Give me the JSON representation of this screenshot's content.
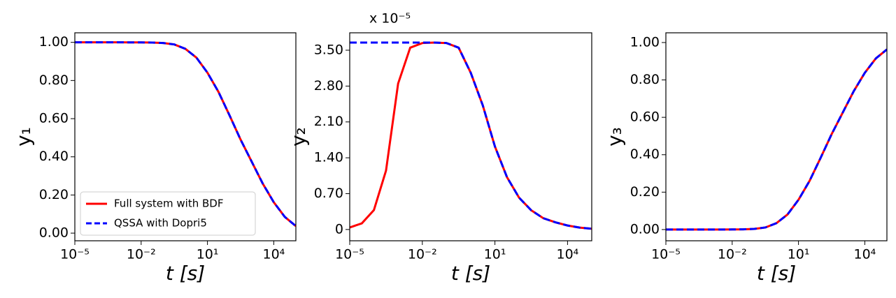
{
  "chart_data": [
    {
      "type": "line",
      "x_label": "t [s]",
      "y_label": "y₁",
      "log_x": true,
      "legend": "lower left",
      "xlim": [
        1e-05,
        100000.0
      ],
      "ylim": [
        -0.04,
        1.05
      ],
      "xticks": [
        {
          "value": 1e-05,
          "label": "10⁻⁵"
        },
        {
          "value": 0.01,
          "label": "10⁻²"
        },
        {
          "value": 10,
          "label": "10¹"
        },
        {
          "value": 10000,
          "label": "10⁴"
        }
      ],
      "yticks": [
        {
          "value": 0,
          "label": "0.00"
        },
        {
          "value": 0.2,
          "label": "0.20"
        },
        {
          "value": 0.4,
          "label": "0.40"
        },
        {
          "value": 0.6,
          "label": "0.60"
        },
        {
          "value": 0.8,
          "label": "0.80"
        },
        {
          "value": 1,
          "label": "1.00"
        }
      ],
      "x": [
        1e-05,
        3.16e-05,
        0.0001,
        0.000316,
        0.001,
        0.00316,
        0.01,
        0.0316,
        0.1,
        0.316,
        1,
        3.16,
        10,
        31.6,
        100,
        316,
        1000,
        3162,
        10000,
        31623,
        100000
      ],
      "series": [
        {
          "name": "Full system with BDF",
          "color": "#ff0000",
          "dashed": false,
          "values": [
            1,
            1,
            1,
            1,
            1,
            0.9999,
            0.9996,
            0.9988,
            0.9965,
            0.989,
            0.966,
            0.92,
            0.841,
            0.74,
            0.617,
            0.49,
            0.375,
            0.26,
            0.162,
            0.085,
            0.037
          ]
        },
        {
          "name": "QSSA with Dopri5",
          "color": "#0000ff",
          "dashed": true,
          "values": [
            1,
            1,
            1,
            1,
            1,
            0.9999,
            0.9996,
            0.9988,
            0.9965,
            0.989,
            0.966,
            0.92,
            0.841,
            0.74,
            0.617,
            0.49,
            0.375,
            0.26,
            0.162,
            0.085,
            0.037
          ]
        }
      ]
    },
    {
      "type": "line",
      "x_label": "t [s]",
      "y_label": "y₂",
      "log_x": true,
      "y_offset_label": "x 10⁻⁵",
      "xlim": [
        1e-05,
        100000.0
      ],
      "ylim": [
        -0.22,
        3.84
      ],
      "xticks": [
        {
          "value": 1e-05,
          "label": "10⁻⁵"
        },
        {
          "value": 0.01,
          "label": "10⁻²"
        },
        {
          "value": 10,
          "label": "10¹"
        },
        {
          "value": 10000,
          "label": "10⁴"
        }
      ],
      "yticks": [
        0,
        {
          "value": 0.7,
          "label": "0.70"
        },
        {
          "value": 1.4,
          "label": "1.40"
        },
        {
          "value": 2.1,
          "label": "2.10"
        },
        {
          "value": 2.8,
          "label": "2.80"
        },
        {
          "value": 3.5,
          "label": "3.50"
        }
      ],
      "x": [
        1e-05,
        3.16e-05,
        0.0001,
        0.000316,
        0.001,
        0.00316,
        0.01,
        0.0316,
        0.1,
        0.316,
        1,
        3.16,
        10,
        31.6,
        100,
        316,
        1000,
        3162,
        10000,
        31623,
        100000
      ],
      "series": [
        {
          "color": "#ff0000",
          "dashed": false,
          "values": [
            0.04,
            0.12,
            0.38,
            1.15,
            2.85,
            3.55,
            3.64,
            3.65,
            3.64,
            3.55,
            3.06,
            2.42,
            1.62,
            1.02,
            0.62,
            0.375,
            0.22,
            0.14,
            0.078,
            0.037,
            0.015
          ]
        },
        {
          "color": "#0000ff",
          "dashed": true,
          "values": [
            3.65,
            3.65,
            3.65,
            3.65,
            3.65,
            3.65,
            3.65,
            3.65,
            3.64,
            3.55,
            3.06,
            2.42,
            1.62,
            1.02,
            0.62,
            0.375,
            0.22,
            0.14,
            0.078,
            0.037,
            0.015
          ]
        }
      ]
    },
    {
      "type": "line",
      "x_label": "t [s]",
      "y_label": "y₃",
      "log_x": true,
      "xlim": [
        1e-05,
        100000.0
      ],
      "ylim": [
        -0.06,
        1.052
      ],
      "xticks": [
        {
          "value": 1e-05,
          "label": "10⁻⁵"
        },
        {
          "value": 0.01,
          "label": "10⁻²"
        },
        {
          "value": 10,
          "label": "10¹"
        },
        {
          "value": 10000,
          "label": "10⁴"
        }
      ],
      "yticks": [
        {
          "value": 0,
          "label": "0.00"
        },
        {
          "value": 0.2,
          "label": "0.20"
        },
        {
          "value": 0.4,
          "label": "0.40"
        },
        {
          "value": 0.6,
          "label": "0.60"
        },
        {
          "value": 0.8,
          "label": "0.80"
        },
        {
          "value": 1,
          "label": "1.00"
        }
      ],
      "x": [
        1e-05,
        3.16e-05,
        0.0001,
        0.000316,
        0.001,
        0.00316,
        0.01,
        0.0316,
        0.1,
        0.316,
        1,
        3.16,
        10,
        31.6,
        100,
        316,
        1000,
        3162,
        10000,
        31623,
        100000
      ],
      "series": [
        {
          "color": "#ff0000",
          "dashed": false,
          "values": [
            0,
            0,
            0,
            0,
            0,
            0.0001,
            0.0004,
            0.0012,
            0.0035,
            0.011,
            0.034,
            0.08,
            0.159,
            0.26,
            0.383,
            0.51,
            0.625,
            0.74,
            0.838,
            0.915,
            0.963
          ]
        },
        {
          "color": "#0000ff",
          "dashed": true,
          "values": [
            0,
            0,
            0,
            0,
            0,
            0.0001,
            0.0004,
            0.0012,
            0.0035,
            0.011,
            0.034,
            0.08,
            0.159,
            0.26,
            0.383,
            0.51,
            0.625,
            0.74,
            0.838,
            0.915,
            0.963
          ]
        }
      ]
    }
  ]
}
